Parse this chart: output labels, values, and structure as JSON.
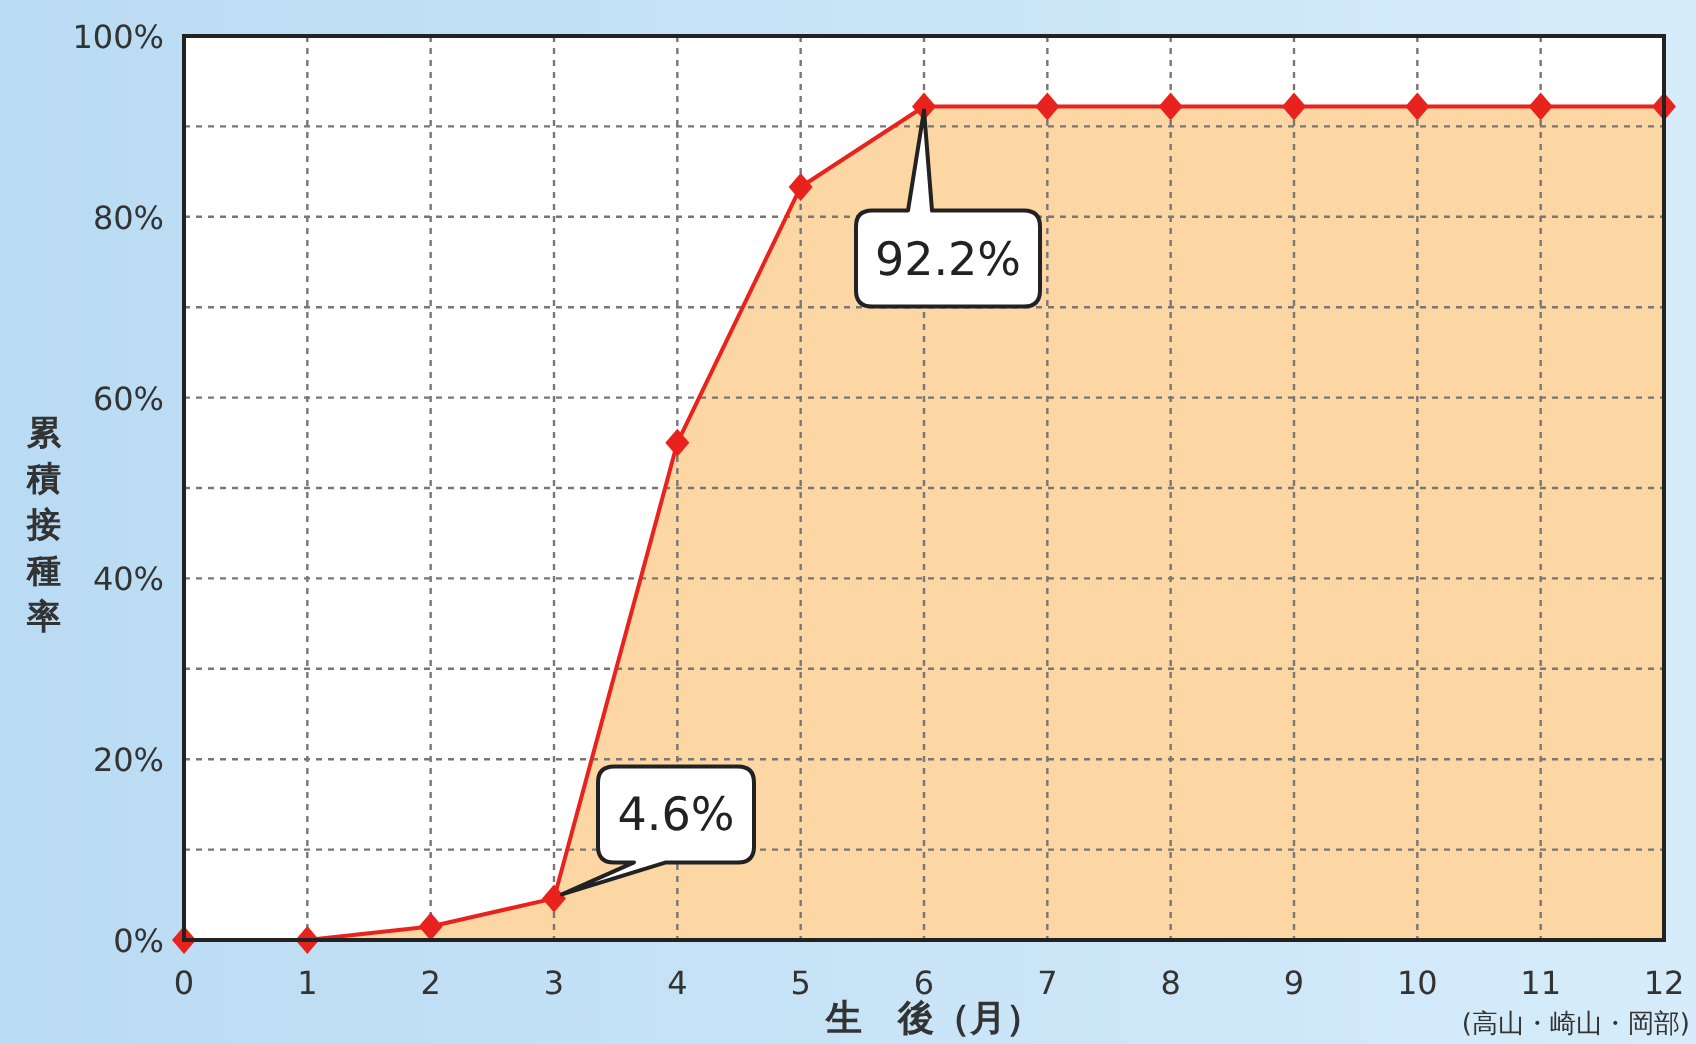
{
  "chart_data": {
    "type": "area",
    "xlabel": "生　後（月）",
    "ylabel": "累積接種率",
    "x": [
      0,
      1,
      2,
      3,
      4,
      5,
      6,
      7,
      8,
      9,
      10,
      11,
      12
    ],
    "series": [
      {
        "color": "#e8231e",
        "values": [
          0,
          0,
          1.5,
          4.6,
          55,
          83.3,
          92.2,
          92.2,
          92.2,
          92.2,
          92.2,
          92.2,
          92.2
        ]
      }
    ],
    "xlim": [
      0,
      12
    ],
    "ylim": [
      0,
      100
    ],
    "xticks": [
      0,
      1,
      2,
      3,
      4,
      5,
      6,
      7,
      8,
      9,
      10,
      11,
      12
    ],
    "yticks": [
      {
        "value": 0,
        "label": "0%"
      },
      {
        "value": 10,
        "label": null
      },
      {
        "value": 20,
        "label": "20%"
      },
      {
        "value": 30,
        "label": null
      },
      {
        "value": 40,
        "label": "40%"
      },
      {
        "value": 50,
        "label": null
      },
      {
        "value": 60,
        "label": "60%"
      },
      {
        "value": 70,
        "label": null
      },
      {
        "value": 80,
        "label": "80%"
      },
      {
        "value": 90,
        "label": null
      },
      {
        "value": 100,
        "label": "100%"
      }
    ],
    "grid": true,
    "marker": "diamond",
    "annotations": [
      {
        "text": "4.6%",
        "x": 3,
        "y": 4.6
      },
      {
        "text": "92.2%",
        "x": 6,
        "y": 92.2
      },
      "(高山・崎山・岡部)"
    ]
  }
}
